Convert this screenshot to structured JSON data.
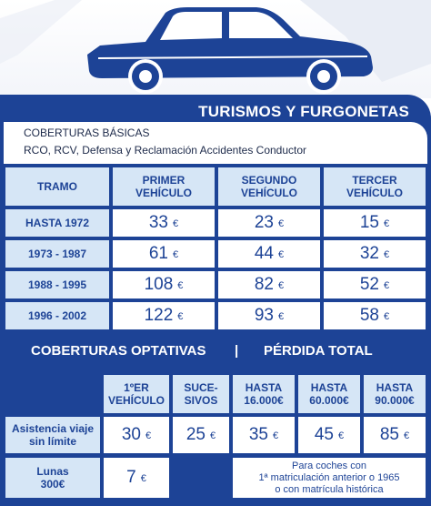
{
  "title": "TURISMOS Y FURGONETAS",
  "basic": {
    "title": "COBERTURAS BÁSICAS",
    "subtitle": "RCO, RCV, Defensa y Reclamación Accidentes Conductor"
  },
  "table1": {
    "headers": [
      "TRAMO",
      "PRIMER\nVEHÍCULO",
      "SEGUNDO\nVEHÍCULO",
      "TERCER\nVEHÍCULO"
    ],
    "rows": [
      {
        "label": "HASTA 1972",
        "values": [
          "33",
          "23",
          "15"
        ]
      },
      {
        "label": "1973 - 1987",
        "values": [
          "61",
          "44",
          "32"
        ]
      },
      {
        "label": "1988 - 1995",
        "values": [
          "108",
          "82",
          "52"
        ]
      },
      {
        "label": "1996 - 2002",
        "values": [
          "122",
          "93",
          "58"
        ]
      }
    ],
    "currency": "€"
  },
  "optional": {
    "left_title": "COBERTURAS OPTATIVAS",
    "separator": "|",
    "right_title": "PÉRDIDA TOTAL",
    "headers": [
      "1ºER\nVEHÍCULO",
      "SUCE-\nSIVOS",
      "HASTA\n16.000€",
      "HASTA\n60.000€",
      "HASTA\n90.000€"
    ],
    "rows": [
      {
        "label": "Asistencia viaje\nsin límite",
        "values": [
          "30",
          "25",
          "35",
          "45",
          "85"
        ]
      },
      {
        "label": "Lunas\n300€",
        "values": [
          "7"
        ]
      }
    ],
    "note": "Para coches con\n1ª matriculación anterior o 1965\no con matrícula histórica"
  },
  "colors": {
    "panel": "#1d4396",
    "light": "#d6e6f6",
    "text": "#1d4396"
  }
}
